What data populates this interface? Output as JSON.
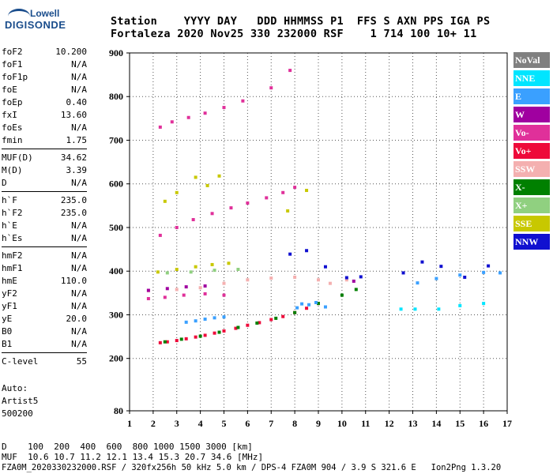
{
  "logo": {
    "line1": "Lowell",
    "line2": "DIGISONDE"
  },
  "header": {
    "labels": "Station    YYYY DAY   DDD HHMMSS P1  FFS S AXN PPS IGA PS",
    "values": "Fortaleza 2020 Nov25 330 232000 RSF    1 714 100 10+ 11"
  },
  "params": {
    "group1": [
      {
        "k": "foF2",
        "v": "10.200"
      },
      {
        "k": "foF1",
        "v": "N/A"
      },
      {
        "k": "foF1p",
        "v": "N/A"
      },
      {
        "k": "foE",
        "v": "N/A"
      },
      {
        "k": "foEp",
        "v": "0.40"
      },
      {
        "k": "fxI",
        "v": "13.60"
      },
      {
        "k": "foEs",
        "v": "N/A"
      },
      {
        "k": "fmin",
        "v": "1.75"
      }
    ],
    "group2": [
      {
        "k": "MUF(D)",
        "v": "34.62"
      },
      {
        "k": "M(D)",
        "v": "3.39"
      },
      {
        "k": "D",
        "v": "N/A"
      }
    ],
    "group3": [
      {
        "k": "h`F",
        "v": "235.0"
      },
      {
        "k": "h`F2",
        "v": "235.0"
      },
      {
        "k": "h`E",
        "v": "N/A"
      },
      {
        "k": "h`Es",
        "v": "N/A"
      }
    ],
    "group4": [
      {
        "k": "hmF2",
        "v": "N/A"
      },
      {
        "k": "hmF1",
        "v": "N/A"
      },
      {
        "k": "hmE",
        "v": "110.0"
      },
      {
        "k": "yF2",
        "v": "N/A"
      },
      {
        "k": "yF1",
        "v": "N/A"
      },
      {
        "k": "yE",
        "v": "20.0"
      },
      {
        "k": "B0",
        "v": "N/A"
      },
      {
        "k": "B1",
        "v": "N/A"
      }
    ],
    "group5": [
      {
        "k": "C-level",
        "v": "55"
      }
    ]
  },
  "auto": {
    "line1": "Auto:",
    "line2": "Artist5",
    "line3": "500200"
  },
  "footer": {
    "d_row": "D    100  200  400  600  800 1000 1500 3000 [km]",
    "muf_row": "MUF  10.6 10.7 11.2 12.1 13.4 15.3 20.7 34.6 [MHz]",
    "info_row": "FZA0M_2020330232000.RSF / 320fx256h 50 kHz 5.0 km / DPS-4 FZA0M 904 / 3.9 S 321.6 E   Ion2Png 1.3.20"
  },
  "legend": [
    {
      "label": "NoVal",
      "color": "#808080"
    },
    {
      "label": "NNE",
      "color": "#00e5ff"
    },
    {
      "label": "E",
      "color": "#3aa0ff"
    },
    {
      "label": "W",
      "color": "#a000a0"
    },
    {
      "label": "Vo-",
      "color": "#e0309a"
    },
    {
      "label": "Vo+",
      "color": "#ee0a3a"
    },
    {
      "label": "SSW",
      "color": "#f4b0b0"
    },
    {
      "label": "X-",
      "color": "#008000"
    },
    {
      "label": "X+",
      "color": "#90d080"
    },
    {
      "label": "SSE",
      "color": "#c8c800"
    },
    {
      "label": "NNW",
      "color": "#1010d0"
    }
  ],
  "chart_data": {
    "type": "scatter",
    "title": "",
    "xlabel": "",
    "ylabel": "",
    "xlim": [
      1,
      17
    ],
    "ylim": [
      80,
      900
    ],
    "x_ticks": [
      1,
      2,
      3,
      4,
      5,
      6,
      7,
      8,
      9,
      10,
      11,
      12,
      13,
      14,
      15,
      16,
      17
    ],
    "y_ticks": [
      80,
      200,
      300,
      400,
      500,
      600,
      700,
      800,
      900
    ],
    "grid": "dotted",
    "series": [
      {
        "name": "Vo+",
        "color": "#ee0a3a",
        "points": [
          [
            2.3,
            236
          ],
          [
            2.6,
            238
          ],
          [
            3.0,
            241
          ],
          [
            3.4,
            245
          ],
          [
            3.8,
            249
          ],
          [
            4.2,
            253
          ],
          [
            4.6,
            258
          ],
          [
            5.0,
            263
          ],
          [
            5.5,
            269
          ],
          [
            6.0,
            276
          ],
          [
            6.5,
            282
          ],
          [
            7.0,
            289
          ],
          [
            7.5,
            296
          ],
          [
            8.0,
            305
          ],
          [
            8.5,
            315
          ],
          [
            9.0,
            326
          ]
        ]
      },
      {
        "name": "X-",
        "color": "#008000",
        "points": [
          [
            2.5,
            238
          ],
          [
            3.2,
            244
          ],
          [
            4.0,
            251
          ],
          [
            4.8,
            260
          ],
          [
            5.6,
            271
          ],
          [
            6.4,
            281
          ],
          [
            7.2,
            292
          ],
          [
            8.0,
            305
          ],
          [
            9.0,
            326
          ],
          [
            10.0,
            345
          ],
          [
            10.6,
            358
          ]
        ]
      },
      {
        "name": "Vo-",
        "color": "#e0309a",
        "points": [
          [
            2.3,
            482
          ],
          [
            3.0,
            500
          ],
          [
            3.7,
            518
          ],
          [
            4.5,
            532
          ],
          [
            5.3,
            545
          ],
          [
            6.0,
            556
          ],
          [
            6.8,
            568
          ],
          [
            7.5,
            580
          ],
          [
            8.0,
            592
          ],
          [
            2.3,
            730
          ],
          [
            2.8,
            742
          ],
          [
            3.5,
            752
          ],
          [
            4.2,
            762
          ],
          [
            5.0,
            775
          ],
          [
            5.8,
            790
          ],
          [
            7.0,
            820
          ],
          [
            7.8,
            860
          ],
          [
            1.8,
            337
          ],
          [
            2.5,
            340
          ],
          [
            3.3,
            345
          ],
          [
            4.2,
            348
          ],
          [
            5.0,
            345
          ]
        ]
      },
      {
        "name": "SSW",
        "color": "#f4b0b0",
        "points": [
          [
            1.8,
            355
          ],
          [
            3.0,
            358
          ],
          [
            4.0,
            362
          ],
          [
            5.0,
            372
          ],
          [
            6.0,
            380
          ],
          [
            7.0,
            384
          ],
          [
            8.0,
            386
          ],
          [
            9.0,
            380
          ],
          [
            9.5,
            372
          ],
          [
            10.2,
            380
          ]
        ]
      },
      {
        "name": "E",
        "color": "#3aa0ff",
        "points": [
          [
            3.4,
            283
          ],
          [
            3.8,
            286
          ],
          [
            4.2,
            290
          ],
          [
            4.6,
            293
          ],
          [
            5.0,
            295
          ],
          [
            8.1,
            316
          ],
          [
            8.3,
            325
          ],
          [
            8.6,
            323
          ],
          [
            8.9,
            328
          ],
          [
            9.3,
            318
          ],
          [
            13.2,
            373
          ],
          [
            14.0,
            383
          ],
          [
            15.0,
            391
          ],
          [
            16.0,
            397
          ],
          [
            16.7,
            396
          ]
        ]
      },
      {
        "name": "SSE",
        "color": "#c8c800",
        "points": [
          [
            2.2,
            398
          ],
          [
            3.0,
            404
          ],
          [
            3.8,
            410
          ],
          [
            4.5,
            415
          ],
          [
            5.2,
            418
          ],
          [
            2.5,
            560
          ],
          [
            3.0,
            580
          ],
          [
            3.8,
            615
          ],
          [
            4.3,
            596
          ],
          [
            4.8,
            618
          ],
          [
            7.7,
            538
          ],
          [
            8.5,
            585
          ]
        ]
      },
      {
        "name": "NNW",
        "color": "#1010d0",
        "points": [
          [
            7.8,
            439
          ],
          [
            8.5,
            447
          ],
          [
            9.3,
            410
          ],
          [
            10.2,
            385
          ],
          [
            10.8,
            387
          ],
          [
            12.6,
            396
          ],
          [
            13.4,
            421
          ],
          [
            14.2,
            411
          ],
          [
            15.2,
            386
          ],
          [
            16.2,
            412
          ]
        ]
      },
      {
        "name": "NNE",
        "color": "#00e5ff",
        "points": [
          [
            12.5,
            313
          ],
          [
            13.1,
            313
          ],
          [
            14.1,
            313
          ],
          [
            15.0,
            321
          ],
          [
            16.0,
            326
          ]
        ]
      },
      {
        "name": "X+",
        "color": "#90d080",
        "points": [
          [
            2.6,
            396
          ],
          [
            3.6,
            398
          ],
          [
            4.6,
            402
          ],
          [
            5.6,
            404
          ]
        ]
      },
      {
        "name": "W",
        "color": "#a000a0",
        "points": [
          [
            1.8,
            356
          ],
          [
            2.6,
            360
          ],
          [
            3.4,
            364
          ],
          [
            4.2,
            366
          ],
          [
            10.5,
            377
          ]
        ]
      }
    ]
  }
}
